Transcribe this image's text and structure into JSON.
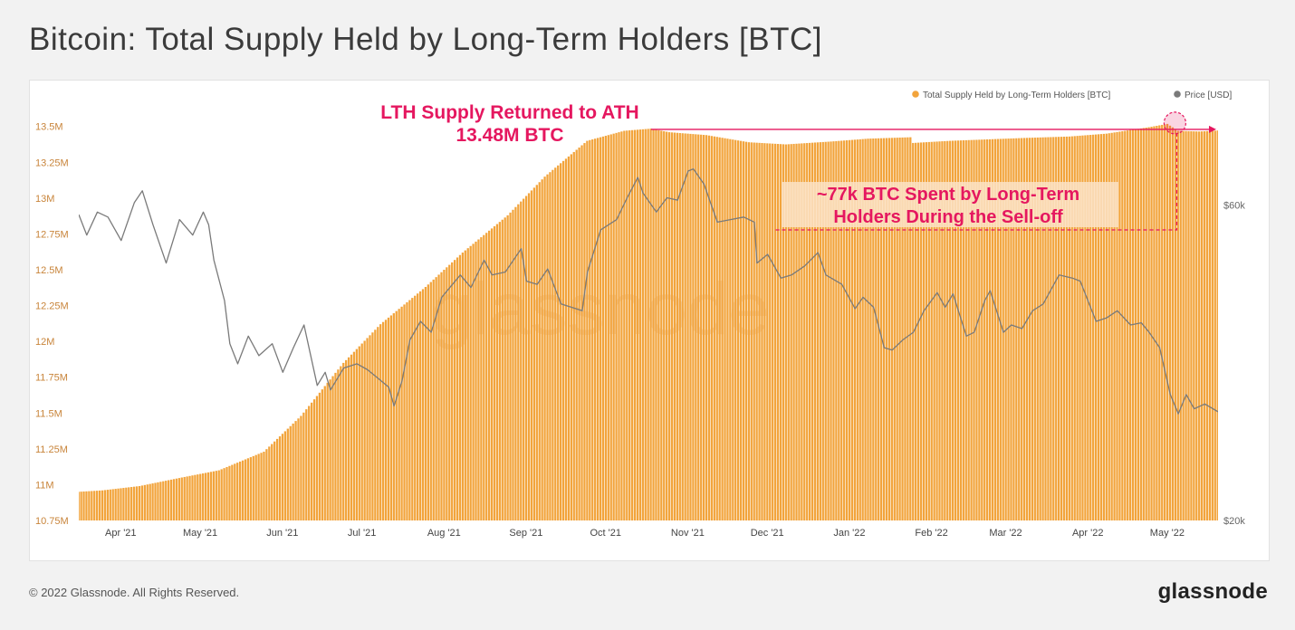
{
  "header": {
    "title": "Bitcoin: Total Supply Held by Long-Term Holders [BTC]"
  },
  "footer": {
    "copyright": "© 2022 Glassnode. All Rights Reserved.",
    "brand": "glassnode"
  },
  "watermark": "glassnode",
  "colors": {
    "supply": "#f2a43c",
    "price": "#7a7a7a",
    "annotation": "#e5175f"
  },
  "chart_data": {
    "type": "bar",
    "title": "Bitcoin: Total Supply Held by Long-Term Holders [BTC]",
    "legend": [
      {
        "label": "Total Supply Held by Long-Term Holders [BTC]",
        "color": "#f2a43c",
        "marker": "circle"
      },
      {
        "label": "Price [USD]",
        "color": "#7a7a7a",
        "marker": "circle"
      }
    ],
    "legend_position": "top-right",
    "x_range": [
      "2021-03-23",
      "2022-05-27"
    ],
    "x_ticks": [
      {
        "label": "Apr '21",
        "date": "2021-04-01"
      },
      {
        "label": "May '21",
        "date": "2021-05-01"
      },
      {
        "label": "Jun '21",
        "date": "2021-06-01"
      },
      {
        "label": "Jul '21",
        "date": "2021-07-01"
      },
      {
        "label": "Aug '21",
        "date": "2021-08-01"
      },
      {
        "label": "Sep '21",
        "date": "2021-09-01"
      },
      {
        "label": "Oct '21",
        "date": "2021-10-01"
      },
      {
        "label": "Nov '21",
        "date": "2021-11-01"
      },
      {
        "label": "Dec '21",
        "date": "2021-12-01"
      },
      {
        "label": "Jan '22",
        "date": "2022-01-01"
      },
      {
        "label": "Feb '22",
        "date": "2022-02-01"
      },
      {
        "label": "Mar '22",
        "date": "2022-03-01"
      },
      {
        "label": "Apr '22",
        "date": "2022-04-01"
      },
      {
        "label": "May '22",
        "date": "2022-05-01"
      }
    ],
    "y_left": {
      "range": [
        10750000,
        13530000
      ],
      "ticks": [
        {
          "label": "10.75M",
          "value": 10750000
        },
        {
          "label": "11M",
          "value": 11000000
        },
        {
          "label": "11.25M",
          "value": 11250000
        },
        {
          "label": "11.5M",
          "value": 11500000
        },
        {
          "label": "11.75M",
          "value": 11750000
        },
        {
          "label": "12M",
          "value": 12000000
        },
        {
          "label": "12.25M",
          "value": 12250000
        },
        {
          "label": "12.5M",
          "value": 12500000
        },
        {
          "label": "12.75M",
          "value": 12750000
        },
        {
          "label": "13M",
          "value": 13000000
        },
        {
          "label": "13.25M",
          "value": 13250000
        },
        {
          "label": "13.5M",
          "value": 13500000
        }
      ]
    },
    "y_right": {
      "scale": "log",
      "range": [
        20000,
        80000
      ],
      "ticks": [
        {
          "label": "$20k",
          "value": 20000
        },
        {
          "label": "$60k",
          "value": 60000
        }
      ]
    },
    "series": [
      {
        "name": "Total Supply Held by Long-Term Holders [BTC]",
        "type": "bar",
        "axis": "left",
        "points": [
          [
            "2021-03-23",
            10950000
          ],
          [
            "2021-04-01",
            10960000
          ],
          [
            "2021-04-15",
            10990000
          ],
          [
            "2021-05-01",
            11050000
          ],
          [
            "2021-05-15",
            11100000
          ],
          [
            "2021-06-01",
            11230000
          ],
          [
            "2021-06-15",
            11480000
          ],
          [
            "2021-07-01",
            11850000
          ],
          [
            "2021-07-15",
            12120000
          ],
          [
            "2021-08-01",
            12380000
          ],
          [
            "2021-08-15",
            12620000
          ],
          [
            "2021-09-01",
            12880000
          ],
          [
            "2021-09-15",
            13150000
          ],
          [
            "2021-10-01",
            13400000
          ],
          [
            "2021-10-15",
            13470000
          ],
          [
            "2021-10-25",
            13485000
          ],
          [
            "2021-11-01",
            13460000
          ],
          [
            "2021-11-15",
            13440000
          ],
          [
            "2021-12-01",
            13390000
          ],
          [
            "2021-12-15",
            13375000
          ],
          [
            "2022-01-01",
            13395000
          ],
          [
            "2022-01-15",
            13415000
          ],
          [
            "2022-01-31",
            13425000
          ],
          [
            "2022-02-01",
            13385000
          ],
          [
            "2022-02-15",
            13400000
          ],
          [
            "2022-03-01",
            13410000
          ],
          [
            "2022-03-15",
            13420000
          ],
          [
            "2022-04-01",
            13430000
          ],
          [
            "2022-04-15",
            13450000
          ],
          [
            "2022-05-01",
            13495000
          ],
          [
            "2022-05-08",
            13518000
          ],
          [
            "2022-05-12",
            13470000
          ],
          [
            "2022-05-20",
            13465000
          ],
          [
            "2022-05-27",
            13472000
          ]
        ]
      },
      {
        "name": "Price [USD]",
        "type": "line",
        "axis": "right",
        "points": [
          [
            "2021-03-23",
            58000
          ],
          [
            "2021-03-26",
            54000
          ],
          [
            "2021-03-30",
            58500
          ],
          [
            "2021-04-03",
            57500
          ],
          [
            "2021-04-08",
            53000
          ],
          [
            "2021-04-13",
            60500
          ],
          [
            "2021-04-16",
            63000
          ],
          [
            "2021-04-20",
            56000
          ],
          [
            "2021-04-25",
            49000
          ],
          [
            "2021-04-30",
            57000
          ],
          [
            "2021-05-05",
            54000
          ],
          [
            "2021-05-09",
            58500
          ],
          [
            "2021-05-11",
            56000
          ],
          [
            "2021-05-13",
            49500
          ],
          [
            "2021-05-17",
            43000
          ],
          [
            "2021-05-19",
            37000
          ],
          [
            "2021-05-22",
            34500
          ],
          [
            "2021-05-26",
            38000
          ],
          [
            "2021-05-30",
            35500
          ],
          [
            "2021-06-04",
            37000
          ],
          [
            "2021-06-08",
            33500
          ],
          [
            "2021-06-12",
            36500
          ],
          [
            "2021-06-16",
            39500
          ],
          [
            "2021-06-21",
            32000
          ],
          [
            "2021-06-24",
            33500
          ],
          [
            "2021-06-26",
            31500
          ],
          [
            "2021-07-01",
            34000
          ],
          [
            "2021-07-06",
            34500
          ],
          [
            "2021-07-10",
            33800
          ],
          [
            "2021-07-14",
            32800
          ],
          [
            "2021-07-18",
            31800
          ],
          [
            "2021-07-20",
            29800
          ],
          [
            "2021-07-23",
            32500
          ],
          [
            "2021-07-26",
            37500
          ],
          [
            "2021-07-30",
            40000
          ],
          [
            "2021-08-03",
            38500
          ],
          [
            "2021-08-07",
            43500
          ],
          [
            "2021-08-14",
            47000
          ],
          [
            "2021-08-18",
            45000
          ],
          [
            "2021-08-23",
            49500
          ],
          [
            "2021-08-26",
            47000
          ],
          [
            "2021-08-31",
            47500
          ],
          [
            "2021-09-06",
            51500
          ],
          [
            "2021-09-08",
            46000
          ],
          [
            "2021-09-12",
            45500
          ],
          [
            "2021-09-16",
            48000
          ],
          [
            "2021-09-21",
            42500
          ],
          [
            "2021-09-25",
            42000
          ],
          [
            "2021-09-29",
            41500
          ],
          [
            "2021-10-01",
            47500
          ],
          [
            "2021-10-06",
            55000
          ],
          [
            "2021-10-12",
            57000
          ],
          [
            "2021-10-16",
            61500
          ],
          [
            "2021-10-20",
            66000
          ],
          [
            "2021-10-22",
            62500
          ],
          [
            "2021-10-27",
            58500
          ],
          [
            "2021-10-31",
            61500
          ],
          [
            "2021-11-04",
            61000
          ],
          [
            "2021-11-08",
            67500
          ],
          [
            "2021-11-10",
            68000
          ],
          [
            "2021-11-14",
            64500
          ],
          [
            "2021-11-19",
            56500
          ],
          [
            "2021-11-24",
            57000
          ],
          [
            "2021-11-29",
            57500
          ],
          [
            "2021-12-03",
            56500
          ],
          [
            "2021-12-04",
            49000
          ],
          [
            "2021-12-08",
            50500
          ],
          [
            "2021-12-13",
            46500
          ],
          [
            "2021-12-17",
            47000
          ],
          [
            "2021-12-22",
            48500
          ],
          [
            "2021-12-27",
            50800
          ],
          [
            "2021-12-30",
            47000
          ],
          [
            "2022-01-05",
            45500
          ],
          [
            "2022-01-10",
            41800
          ],
          [
            "2022-01-13",
            43500
          ],
          [
            "2022-01-17",
            42000
          ],
          [
            "2022-01-21",
            36500
          ],
          [
            "2022-01-24",
            36200
          ],
          [
            "2022-01-28",
            37500
          ],
          [
            "2022-02-01",
            38500
          ],
          [
            "2022-02-05",
            41500
          ],
          [
            "2022-02-10",
            44200
          ],
          [
            "2022-02-13",
            42000
          ],
          [
            "2022-02-16",
            44000
          ],
          [
            "2022-02-21",
            38000
          ],
          [
            "2022-02-24",
            38500
          ],
          [
            "2022-02-28",
            43000
          ],
          [
            "2022-03-02",
            44500
          ],
          [
            "2022-03-07",
            38500
          ],
          [
            "2022-03-10",
            39500
          ],
          [
            "2022-03-14",
            39000
          ],
          [
            "2022-03-18",
            41500
          ],
          [
            "2022-03-22",
            42500
          ],
          [
            "2022-03-28",
            47000
          ],
          [
            "2022-04-02",
            46500
          ],
          [
            "2022-04-05",
            46000
          ],
          [
            "2022-04-11",
            40000
          ],
          [
            "2022-04-15",
            40500
          ],
          [
            "2022-04-19",
            41500
          ],
          [
            "2022-04-24",
            39500
          ],
          [
            "2022-04-28",
            39800
          ],
          [
            "2022-05-01",
            38500
          ],
          [
            "2022-05-05",
            36500
          ],
          [
            "2022-05-09",
            31000
          ],
          [
            "2022-05-12",
            29000
          ],
          [
            "2022-05-15",
            31000
          ],
          [
            "2022-05-18",
            29500
          ],
          [
            "2022-05-22",
            30000
          ],
          [
            "2022-05-27",
            29200
          ]
        ]
      }
    ],
    "annotations": [
      {
        "lines": [
          "LTH Supply Returned to ATH",
          "13.48M BTC"
        ]
      },
      {
        "lines": [
          "~77k BTC Spent by Long-Term",
          "Holders During the Sell-off"
        ]
      }
    ],
    "ath_value": 13480000,
    "ath_date": "2021-10-25",
    "ath_return_date": "2022-05-08",
    "spent_drop_value": 13403000
  }
}
